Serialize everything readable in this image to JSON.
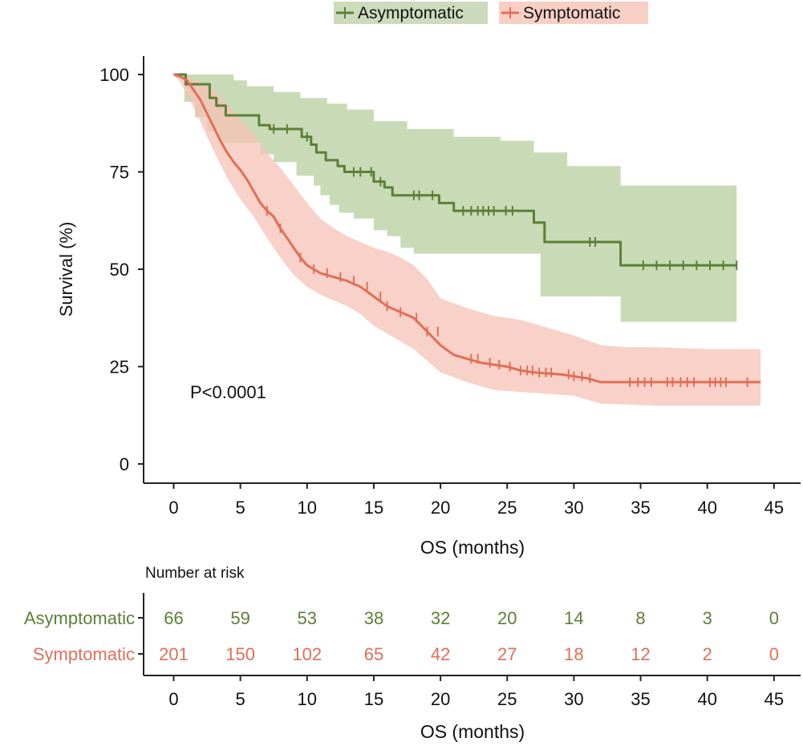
{
  "chart_data": {
    "type": "line",
    "subtype": "kaplan-meier",
    "title": "",
    "xlabel": "OS (months)",
    "ylabel": "Survival (%)",
    "xlim": [
      -2,
      47
    ],
    "ylim": [
      -5,
      105
    ],
    "x_ticks": [
      "0",
      "5",
      "10",
      "15",
      "20",
      "25",
      "30",
      "35",
      "40",
      "45"
    ],
    "y_ticks": [
      "0",
      "25",
      "50",
      "75",
      "100"
    ],
    "annotation": "P<0.0001",
    "legend_position": "top",
    "grid": false,
    "series": [
      {
        "name": "Asymptomatic",
        "color": "#5c7f36",
        "band_color": "#b7ce9f",
        "steps": [
          [
            0,
            100
          ],
          [
            0.9,
            100
          ],
          [
            0.9,
            97.5
          ],
          [
            2.7,
            97.5
          ],
          [
            2.7,
            94
          ],
          [
            3.2,
            94
          ],
          [
            3.2,
            92
          ],
          [
            3.9,
            92
          ],
          [
            3.9,
            89.5
          ],
          [
            6.4,
            89.5
          ],
          [
            6.4,
            87
          ],
          [
            7.2,
            87
          ],
          [
            7.2,
            86
          ],
          [
            9.6,
            86
          ],
          [
            9.6,
            84
          ],
          [
            10.3,
            84
          ],
          [
            10.3,
            82
          ],
          [
            10.7,
            82
          ],
          [
            10.7,
            80
          ],
          [
            11.4,
            80
          ],
          [
            11.4,
            78
          ],
          [
            12.3,
            78
          ],
          [
            12.3,
            76.5
          ],
          [
            12.8,
            76.5
          ],
          [
            12.8,
            75
          ],
          [
            15,
            75
          ],
          [
            15,
            72.5
          ],
          [
            15.8,
            72.5
          ],
          [
            15.8,
            71
          ],
          [
            16.4,
            71
          ],
          [
            16.4,
            69
          ],
          [
            19.9,
            69
          ],
          [
            19.9,
            67
          ],
          [
            21,
            67
          ],
          [
            21,
            65
          ],
          [
            27,
            65
          ],
          [
            27,
            62
          ],
          [
            27.8,
            62
          ],
          [
            27.8,
            57
          ],
          [
            33.5,
            57
          ],
          [
            33.5,
            51
          ],
          [
            42.2,
            51
          ]
        ],
        "ci_upper": [
          [
            0,
            100
          ],
          [
            4.5,
            100
          ],
          [
            4.5,
            98.5
          ],
          [
            5.5,
            98.5
          ],
          [
            5.5,
            97
          ],
          [
            7.5,
            97
          ],
          [
            7.5,
            95.5
          ],
          [
            9.5,
            95.5
          ],
          [
            9.5,
            94
          ],
          [
            11.5,
            94
          ],
          [
            11.5,
            92.5
          ],
          [
            13,
            92.5
          ],
          [
            13,
            91
          ],
          [
            15,
            91
          ],
          [
            15,
            88
          ],
          [
            17.5,
            88
          ],
          [
            17.5,
            86
          ],
          [
            21,
            86
          ],
          [
            21,
            84
          ],
          [
            24.5,
            84
          ],
          [
            24.5,
            83
          ],
          [
            27,
            83
          ],
          [
            27,
            80
          ],
          [
            29.5,
            80
          ],
          [
            29.5,
            76.5
          ],
          [
            33.5,
            76.5
          ],
          [
            33.5,
            71.5
          ],
          [
            42.2,
            71.5
          ]
        ],
        "ci_lower": [
          [
            0,
            100
          ],
          [
            0.8,
            100
          ],
          [
            0.8,
            93
          ],
          [
            1.6,
            93
          ],
          [
            1.6,
            89
          ],
          [
            2.5,
            89
          ],
          [
            2.5,
            85.5
          ],
          [
            3.3,
            85.5
          ],
          [
            3.3,
            82.5
          ],
          [
            6.5,
            82.5
          ],
          [
            6.5,
            79.5
          ],
          [
            7.5,
            79.5
          ],
          [
            7.5,
            77.5
          ],
          [
            9.2,
            77.5
          ],
          [
            9.2,
            74
          ],
          [
            10.5,
            74
          ],
          [
            10.5,
            71.5
          ],
          [
            11,
            71.5
          ],
          [
            11,
            69
          ],
          [
            11.7,
            69
          ],
          [
            11.7,
            66.5
          ],
          [
            12.4,
            66.5
          ],
          [
            12.4,
            64.5
          ],
          [
            13.5,
            64.5
          ],
          [
            13.5,
            63
          ],
          [
            15,
            63
          ],
          [
            15,
            60
          ],
          [
            16,
            60
          ],
          [
            16,
            58.5
          ],
          [
            17,
            58.5
          ],
          [
            17,
            55.5
          ],
          [
            18,
            55.5
          ],
          [
            18,
            54
          ],
          [
            27.5,
            54
          ],
          [
            27.5,
            43
          ],
          [
            33.5,
            43
          ],
          [
            33.5,
            36.5
          ],
          [
            42.2,
            36.5
          ]
        ],
        "censor_times": [
          7.5,
          8.5,
          10,
          13.5,
          14,
          14.8,
          15.5,
          18,
          18.4,
          19.4,
          21.7,
          22.3,
          22.8,
          23.2,
          23.6,
          24,
          24.9,
          25.4,
          31.2,
          31.6,
          35.2,
          36.2,
          37.2,
          38.2,
          39.2,
          40.2,
          41.2,
          42.2
        ]
      },
      {
        "name": "Symptomatic",
        "color": "#e06f57",
        "band_color": "#f6c2b6",
        "steps": [
          [
            0,
            100
          ],
          [
            0.5,
            99.5
          ],
          [
            1,
            98.5
          ],
          [
            1.5,
            96
          ],
          [
            2,
            93.5
          ],
          [
            2.5,
            90
          ],
          [
            3,
            86.5
          ],
          [
            3.5,
            83
          ],
          [
            4,
            80
          ],
          [
            4.5,
            77.5
          ],
          [
            5,
            75.5
          ],
          [
            5.5,
            73
          ],
          [
            6,
            70
          ],
          [
            6.5,
            67
          ],
          [
            7,
            65
          ],
          [
            7.5,
            63.5
          ],
          [
            8,
            60.5
          ],
          [
            8.5,
            58
          ],
          [
            9,
            55.5
          ],
          [
            9.5,
            53
          ],
          [
            10,
            51
          ],
          [
            10.5,
            50
          ],
          [
            11,
            49
          ],
          [
            12,
            48
          ],
          [
            13,
            47
          ],
          [
            14,
            45.5
          ],
          [
            15,
            43
          ],
          [
            16,
            40.5
          ],
          [
            17,
            39
          ],
          [
            18,
            37.5
          ],
          [
            19,
            34
          ],
          [
            20,
            30.5
          ],
          [
            21,
            28
          ],
          [
            22,
            27
          ],
          [
            23,
            26
          ],
          [
            24,
            25.5
          ],
          [
            25,
            25
          ],
          [
            26,
            24
          ],
          [
            27,
            23.5
          ],
          [
            29,
            23
          ],
          [
            30,
            22.5
          ],
          [
            31,
            22
          ],
          [
            32,
            21
          ],
          [
            36,
            21
          ],
          [
            40,
            21
          ],
          [
            44,
            21
          ]
        ],
        "ci_upper": [
          [
            0,
            100
          ],
          [
            1,
            99.5
          ],
          [
            2,
            98
          ],
          [
            3,
            96
          ],
          [
            4,
            92.5
          ],
          [
            5,
            88.5
          ],
          [
            6,
            84.5
          ],
          [
            7,
            80
          ],
          [
            8,
            76
          ],
          [
            9,
            71.5
          ],
          [
            10,
            67
          ],
          [
            11,
            63
          ],
          [
            12,
            60.5
          ],
          [
            13,
            58.5
          ],
          [
            14,
            57
          ],
          [
            15,
            55.5
          ],
          [
            16,
            54.5
          ],
          [
            17,
            53
          ],
          [
            18,
            51
          ],
          [
            19,
            47.5
          ],
          [
            20,
            42.5
          ],
          [
            22,
            40
          ],
          [
            24,
            38
          ],
          [
            26,
            37
          ],
          [
            28,
            35
          ],
          [
            30,
            33
          ],
          [
            32,
            30.5
          ],
          [
            34,
            30
          ],
          [
            36,
            30
          ],
          [
            40,
            29.5
          ],
          [
            44,
            29.5
          ]
        ],
        "ci_lower": [
          [
            0,
            100
          ],
          [
            0.5,
            98
          ],
          [
            1,
            95
          ],
          [
            1.5,
            91.5
          ],
          [
            2,
            88
          ],
          [
            2.5,
            84
          ],
          [
            3,
            80.5
          ],
          [
            3.5,
            77
          ],
          [
            4,
            73.5
          ],
          [
            5,
            68
          ],
          [
            6,
            63.5
          ],
          [
            7,
            58
          ],
          [
            8,
            53
          ],
          [
            9,
            48.5
          ],
          [
            10,
            45.5
          ],
          [
            11,
            43.5
          ],
          [
            12,
            42
          ],
          [
            13,
            40.5
          ],
          [
            14,
            38.5
          ],
          [
            15,
            35.5
          ],
          [
            16,
            33.5
          ],
          [
            17,
            31.5
          ],
          [
            18,
            29.5
          ],
          [
            19,
            26.5
          ],
          [
            20,
            23.5
          ],
          [
            22,
            21
          ],
          [
            24,
            19
          ],
          [
            26,
            18.5
          ],
          [
            28,
            18
          ],
          [
            30,
            17.5
          ],
          [
            32,
            15.5
          ],
          [
            36,
            15
          ],
          [
            40,
            15
          ],
          [
            44,
            15
          ]
        ],
        "censor_times": [
          7,
          8,
          9.5,
          10.5,
          11.5,
          12.5,
          13.5,
          14.5,
          15.5,
          16,
          17,
          18.2,
          19,
          19.8,
          22.3,
          22.8,
          23.7,
          24.4,
          25.2,
          26,
          26.5,
          26.9,
          27.4,
          27.9,
          28.3,
          29.6,
          30,
          30.6,
          31.2,
          34.2,
          34.8,
          35.3,
          35.8,
          37,
          37.4,
          38,
          38.5,
          39,
          40.2,
          40.6,
          41,
          41.4,
          43
        ]
      }
    ]
  },
  "risk_table": {
    "title": "Number at risk",
    "xlabel": "OS (months)",
    "x_ticks": [
      "0",
      "5",
      "10",
      "15",
      "20",
      "25",
      "30",
      "35",
      "40",
      "45"
    ],
    "rows": [
      {
        "name": "Asymptomatic",
        "color": "#5c7f36",
        "values": [
          "66",
          "59",
          "53",
          "38",
          "32",
          "20",
          "14",
          "8",
          "3",
          "0"
        ]
      },
      {
        "name": "Symptomatic",
        "color": "#e06f57",
        "values": [
          "201",
          "150",
          "102",
          "65",
          "42",
          "27",
          "18",
          "12",
          "2",
          "0"
        ]
      }
    ]
  }
}
